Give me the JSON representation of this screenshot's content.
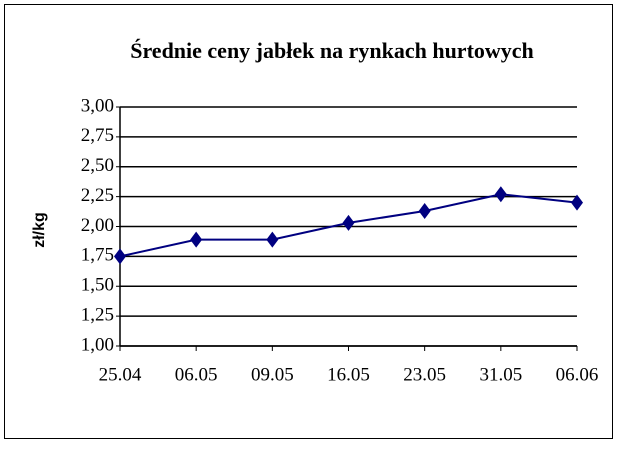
{
  "chart_data": {
    "type": "line",
    "title": "Średnie ceny jabłek na rynkach hurtowych",
    "y_label": "zł/kg",
    "categories": [
      "25.04",
      "06.05",
      "09.05",
      "16.05",
      "23.05",
      "31.05",
      "06.06"
    ],
    "series": [
      {
        "name": "",
        "color": "#000080",
        "values": [
          1.75,
          1.89,
          1.89,
          2.03,
          2.13,
          2.27,
          2.2
        ]
      }
    ],
    "ylim": [
      1,
      3
    ],
    "yticks": [
      {
        "value": 1,
        "label": "1,00"
      },
      {
        "value": 1.25,
        "label": "1,25"
      },
      {
        "value": 1.5,
        "label": "1,50"
      },
      {
        "value": 1.75,
        "label": "1,75"
      },
      {
        "value": 2,
        "label": "2,00"
      },
      {
        "value": 2.25,
        "label": "2,25"
      },
      {
        "value": 2.5,
        "label": "2,50"
      },
      {
        "value": 2.75,
        "label": "2,75"
      },
      {
        "value": 3,
        "label": "3,00"
      }
    ],
    "grid": true
  }
}
